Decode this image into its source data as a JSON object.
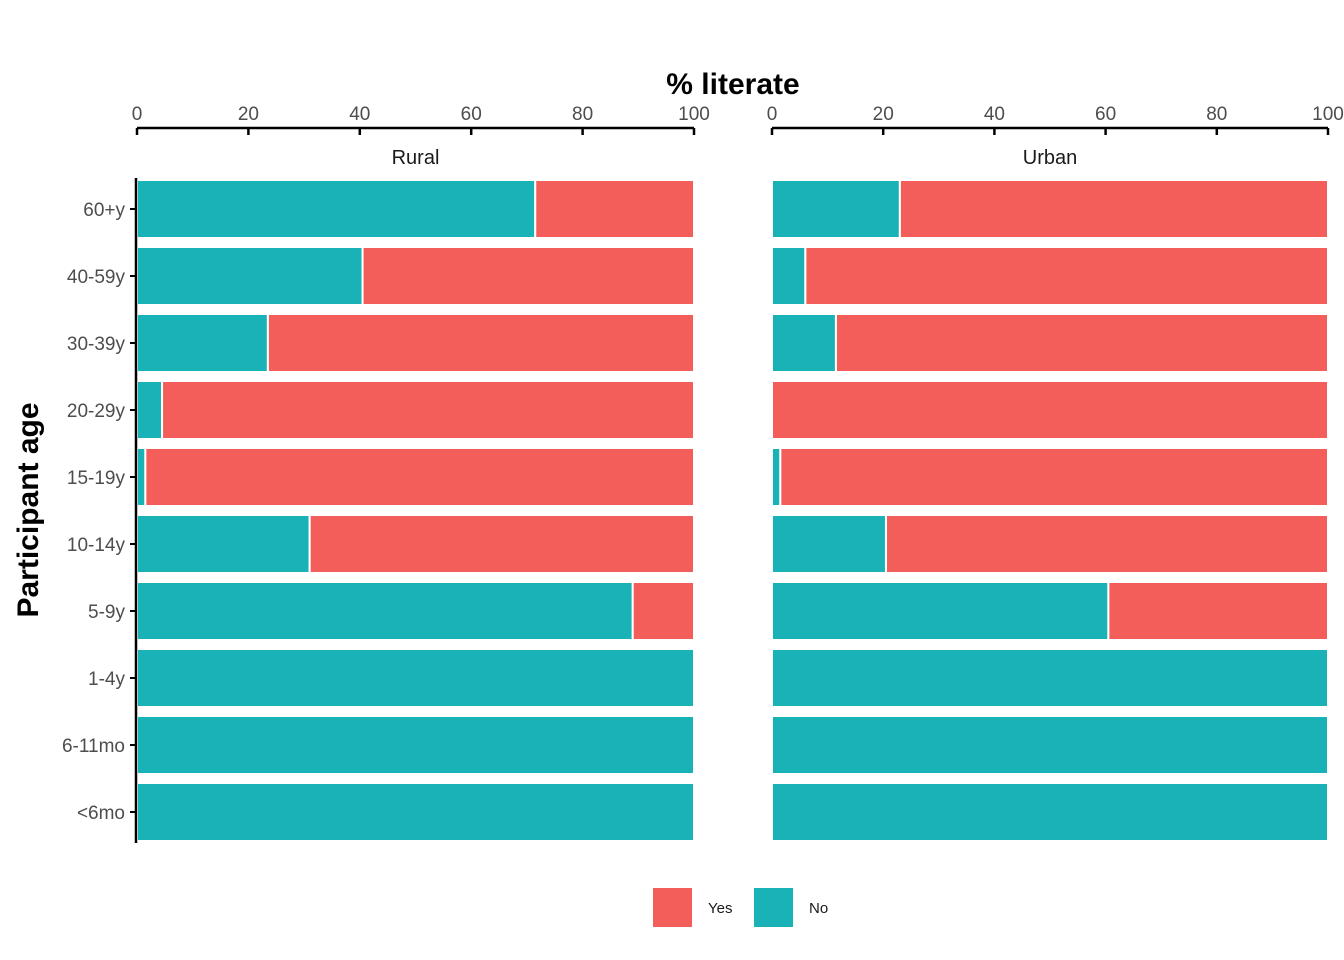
{
  "chart_data": {
    "type": "bar",
    "stacked": true,
    "orientation": "horizontal",
    "xlabel": "% literate",
    "ylabel": "Participant age",
    "xlim": [
      0,
      100
    ],
    "x_ticks": [
      0,
      20,
      40,
      60,
      80,
      100
    ],
    "categories": [
      "60+y",
      "40-59y",
      "30-39y",
      "20-29y",
      "15-19y",
      "10-14y",
      "5-9y",
      "1-4y",
      "6-11mo",
      "<6mo"
    ],
    "legend_position": "bottom",
    "series_colors": {
      "Yes": "#F35E5A",
      "No": "#19B3B7"
    },
    "legend": [
      {
        "name": "Yes",
        "color": "#F35E5A"
      },
      {
        "name": "No",
        "color": "#19B3B7"
      }
    ],
    "facets": [
      {
        "name": "Rural",
        "series": [
          {
            "name": "No",
            "values": [
              71.5,
              40.5,
              23.5,
              4.5,
              1.5,
              31,
              89,
              100,
              100,
              100
            ]
          },
          {
            "name": "Yes",
            "values": [
              28.5,
              59.5,
              76.5,
              95.5,
              98.5,
              69,
              11,
              0,
              0,
              0
            ]
          }
        ]
      },
      {
        "name": "Urban",
        "series": [
          {
            "name": "No",
            "values": [
              23,
              6,
              11.5,
              0,
              1.5,
              20.5,
              60.5,
              100,
              100,
              100
            ]
          },
          {
            "name": "Yes",
            "values": [
              77,
              94,
              88.5,
              100,
              98.5,
              79.5,
              39.5,
              0,
              0,
              0
            ]
          }
        ]
      }
    ]
  }
}
